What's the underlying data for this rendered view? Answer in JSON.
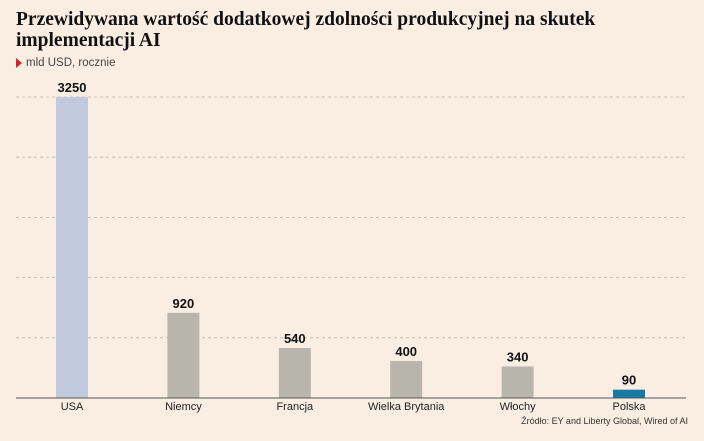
{
  "chart_data": {
    "type": "bar",
    "title": "Przewidywana wartość dodatkowej zdolności produkcyjnej na skutek implementacji AI",
    "subtitle": "mld USD, rocznie",
    "categories": [
      "USA",
      "Niemcy",
      "Francja",
      "Wielka Brytania",
      "Włochy",
      "Polska"
    ],
    "values": [
      3250,
      920,
      540,
      400,
      340,
      90
    ],
    "colors": [
      "#c1c9dc",
      "#b8b6ac",
      "#b8b6ac",
      "#b8b6ac",
      "#b8b6ac",
      "#1a7aa6"
    ],
    "ylim": [
      0,
      3250
    ],
    "grid": true,
    "source": "Źródło: EY and Liberty Global, Wired of AI"
  },
  "colors": {
    "background": "#faeee3",
    "marker": "#d6202a",
    "grid": "#b9b3ab"
  }
}
